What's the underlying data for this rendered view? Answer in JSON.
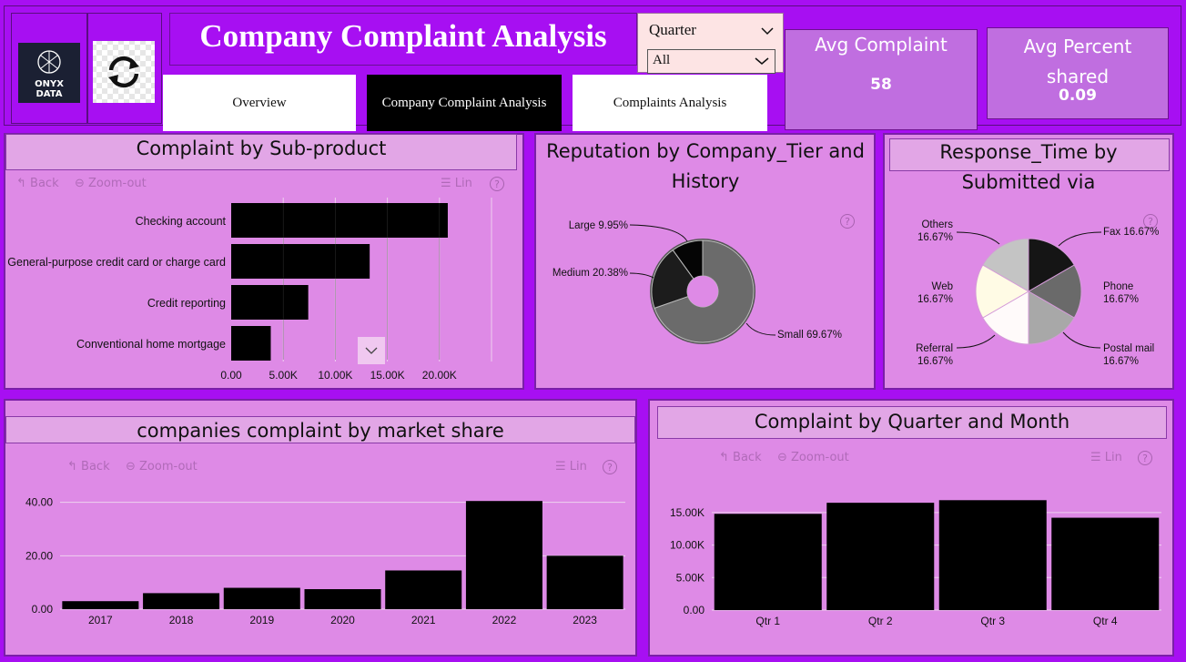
{
  "header": {
    "logo_line1": "ONYX",
    "logo_line2": "DATA",
    "title": "Company Complaint Analysis",
    "quarter_label": "Quarter",
    "quarter_value": "All"
  },
  "nav": {
    "overview": "Overview",
    "company": "Company Complaint Analysis",
    "complaints": "Complaints Analysis"
  },
  "kpis": {
    "avg_complaint_label": "Avg Complaint",
    "avg_complaint_value": "58",
    "avg_percent_label": "Avg Percent shared",
    "avg_percent_value": "0.09"
  },
  "toolbar": {
    "back": "Back",
    "zoom_out": "Zoom-out",
    "lin": "Lin",
    "help": "?"
  },
  "colors": {
    "background": "#a70ff2",
    "panel": "#de8ae6",
    "bar": "#000000"
  },
  "subproduct": {
    "title": "Complaint by Sub-product",
    "chart_data": {
      "type": "bar",
      "orientation": "horizontal",
      "categories": [
        "Checking account",
        "General-purpose credit card or charge card",
        "Credit reporting",
        "Conventional home mortgage"
      ],
      "values": [
        20800,
        13300,
        7400,
        3800
      ],
      "xlim": [
        0,
        25000
      ],
      "ticks": [
        "0.00",
        "5.00K",
        "10.00K",
        "15.00K",
        "20.00K"
      ]
    }
  },
  "reputation": {
    "title": "Reputation by Company_Tier and History",
    "chart_data": {
      "type": "pie",
      "labels": [
        "Small",
        "Medium",
        "Large"
      ],
      "values": [
        69.67,
        20.38,
        9.95
      ],
      "label_text": [
        "Small 69.67%",
        "Medium 20.38%",
        "Large 9.95%"
      ],
      "colors": [
        "#6b6b6b",
        "#1c1c1c",
        "#050505"
      ]
    }
  },
  "response": {
    "title": "Response_Time by Submitted via",
    "chart_data": {
      "type": "pie",
      "labels": [
        "Fax",
        "Phone",
        "Postal mail",
        "Referral",
        "Web",
        "Others"
      ],
      "values": [
        16.67,
        16.67,
        16.67,
        16.67,
        16.67,
        16.67
      ],
      "colors": [
        "#151515",
        "#6a6a6a",
        "#a8a8a8",
        "#fffafa",
        "#fffbe5",
        "#c4c4c4"
      ],
      "label_pct": "16.67%"
    }
  },
  "market": {
    "title": "companies complaint by market share",
    "chart_data": {
      "type": "bar",
      "categories": [
        "2017",
        "2018",
        "2019",
        "2020",
        "2021",
        "2022",
        "2023"
      ],
      "values": [
        3,
        6,
        8,
        7.5,
        14.5,
        40.5,
        20
      ],
      "ylim": [
        0,
        45
      ],
      "ticks": [
        "0.00",
        "20.00",
        "40.00"
      ]
    }
  },
  "quarterly": {
    "title": "Complaint by Quarter and Month",
    "chart_data": {
      "type": "bar",
      "categories": [
        "Qtr 1",
        "Qtr 2",
        "Qtr 3",
        "Qtr 4"
      ],
      "values": [
        14800,
        16500,
        16900,
        14200
      ],
      "ylim": [
        0,
        17500
      ],
      "ticks": [
        "0.00",
        "5.00K",
        "10.00K",
        "15.00K"
      ]
    }
  }
}
